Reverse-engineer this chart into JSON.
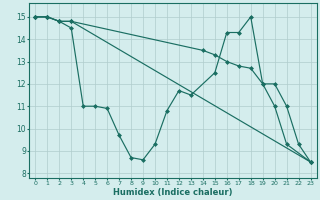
{
  "xlabel": "Humidex (Indice chaleur)",
  "xlim": [
    -0.5,
    23.5
  ],
  "ylim": [
    7.8,
    15.6
  ],
  "yticks": [
    8,
    9,
    10,
    11,
    12,
    13,
    14,
    15
  ],
  "xticks": [
    0,
    1,
    2,
    3,
    4,
    5,
    6,
    7,
    8,
    9,
    10,
    11,
    12,
    13,
    14,
    15,
    16,
    17,
    18,
    19,
    20,
    21,
    22,
    23
  ],
  "background_color": "#d4eded",
  "grid_color": "#b0cccc",
  "line_color": "#1a6e62",
  "series1_x": [
    0,
    1,
    2,
    3,
    4,
    5,
    6,
    7,
    8,
    9,
    10,
    11,
    12,
    13,
    15,
    16,
    17,
    18,
    19,
    20,
    21,
    22,
    23
  ],
  "series1_y": [
    15,
    15,
    14.8,
    14.5,
    11,
    11,
    10.9,
    9.7,
    8.7,
    8.6,
    9.3,
    10.8,
    11.7,
    11.5,
    12.5,
    14.3,
    14.3,
    15,
    12,
    12,
    11,
    9.3,
    8.5
  ],
  "series2_x": [
    0,
    1,
    2,
    3,
    23
  ],
  "series2_y": [
    15,
    15,
    14.8,
    14.8,
    8.5
  ],
  "series3_x": [
    0,
    1,
    2,
    3,
    14,
    15,
    16,
    17,
    18,
    19,
    20,
    21,
    23
  ],
  "series3_y": [
    15,
    15,
    14.8,
    14.8,
    13.5,
    13.3,
    13.0,
    12.8,
    12.7,
    12.0,
    11.0,
    9.3,
    8.5
  ]
}
